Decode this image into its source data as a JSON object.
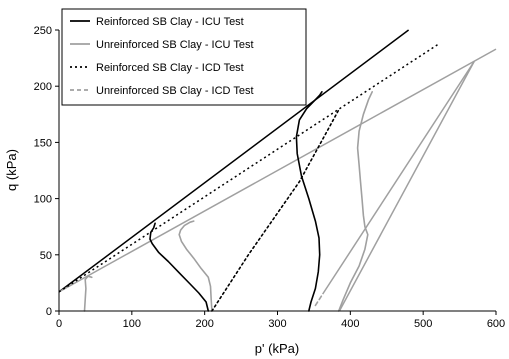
{
  "chart_data": {
    "type": "line",
    "xlabel": "p' (kPa)",
    "ylabel": "q (kPa)",
    "xlim": [
      0,
      600
    ],
    "ylim": [
      0,
      250
    ],
    "xticks": [
      "0",
      "100",
      "200",
      "300",
      "400",
      "500",
      "600"
    ],
    "yticks": [
      "0",
      "50",
      "100",
      "150",
      "200",
      "250"
    ],
    "grid": false,
    "legend_position": "top-left",
    "series": [
      {
        "name": "Reinforced SB Clay - ICU Test",
        "color": "#000000",
        "dash": "solid",
        "paths": [
          [
            [
              205,
              0
            ],
            [
              202,
              8
            ],
            [
              192,
              16
            ],
            [
              180,
              24
            ],
            [
              165,
              34
            ],
            [
              150,
              44
            ],
            [
              137,
              52
            ],
            [
              128,
              60
            ],
            [
              125,
              64
            ],
            [
              126,
              70
            ],
            [
              130,
              74
            ],
            [
              132,
              78
            ]
          ],
          [
            [
              343,
              0
            ],
            [
              346,
              8
            ],
            [
              352,
              20
            ],
            [
              356,
              35
            ],
            [
              358,
              50
            ],
            [
              357,
              65
            ],
            [
              352,
              80
            ],
            [
              343,
              100
            ],
            [
              333,
              120
            ],
            [
              327,
              140
            ],
            [
              326,
              155
            ],
            [
              330,
              170
            ],
            [
              340,
              180
            ],
            [
              352,
              188
            ],
            [
              358,
              192
            ],
            [
              361,
              195
            ]
          ]
        ]
      },
      {
        "name": "Unreinforced SB Clay - ICU Test",
        "color": "#a0a0a0",
        "dash": "solid",
        "paths": [
          [
            [
              35,
              0
            ],
            [
              36,
              10
            ],
            [
              37,
              20
            ],
            [
              36,
              28
            ],
            [
              40,
              31
            ],
            [
              45,
              30
            ]
          ],
          [
            [
              210,
              0
            ],
            [
              209,
              10
            ],
            [
              208,
              22
            ],
            [
              205,
              30
            ],
            [
              195,
              38
            ],
            [
              185,
              47
            ],
            [
              175,
              55
            ],
            [
              168,
              62
            ],
            [
              165,
              68
            ],
            [
              167,
              72
            ],
            [
              172,
              76
            ],
            [
              180,
              79
            ],
            [
              185,
              80
            ]
          ],
          [
            [
              384,
              0
            ],
            [
              390,
              10
            ],
            [
              400,
              25
            ],
            [
              412,
              40
            ],
            [
              420,
              55
            ],
            [
              424,
              68
            ],
            [
              420,
              75
            ],
            [
              418,
              85
            ],
            [
              416,
              100
            ],
            [
              414,
              115
            ],
            [
              412,
              130
            ],
            [
              410,
              145
            ],
            [
              412,
              160
            ],
            [
              418,
              175
            ],
            [
              425,
              188
            ],
            [
              430,
              195
            ]
          ]
        ]
      },
      {
        "name": "Reinforced SB Clay - ICD Test",
        "color": "#000000",
        "dash": "dotted",
        "paths": [
          [
            [
              210,
              0
            ],
            [
              260,
              50
            ],
            [
              330,
              115
            ],
            [
              385,
              180
            ]
          ]
        ]
      },
      {
        "name": "Unreinforced SB Clay - ICD Test",
        "color": "#a0a0a0",
        "dash": "dashed",
        "paths": [
          [
            [
              352,
              5
            ],
            [
              357,
              10
            ],
            [
              362,
              15
            ]
          ]
        ]
      }
    ],
    "lines": [
      {
        "role": "reinforced-icu-envelope",
        "color": "#000000",
        "dash": "solid",
        "x": [
          0,
          480
        ],
        "y": [
          17,
          250
        ]
      },
      {
        "role": "unreinforced-icu-envelope",
        "color": "#a0a0a0",
        "dash": "solid",
        "x": [
          0,
          600
        ],
        "y": [
          17,
          233
        ]
      },
      {
        "role": "reinforced-icd-envelope",
        "color": "#000000",
        "dash": "dotted",
        "x": [
          0,
          520
        ],
        "y": [
          17,
          237
        ]
      },
      {
        "role": "unreinforced-icd-path",
        "color": "#a0a0a0",
        "dash": "solid",
        "x": [
          362,
          570
        ],
        "y": [
          15,
          222
        ]
      },
      {
        "role": "unreinforced-icd-path-upper",
        "color": "#a0a0a0",
        "dash": "solid",
        "x": [
          570,
          385
        ],
        "y": [
          222,
          0
        ]
      }
    ]
  }
}
